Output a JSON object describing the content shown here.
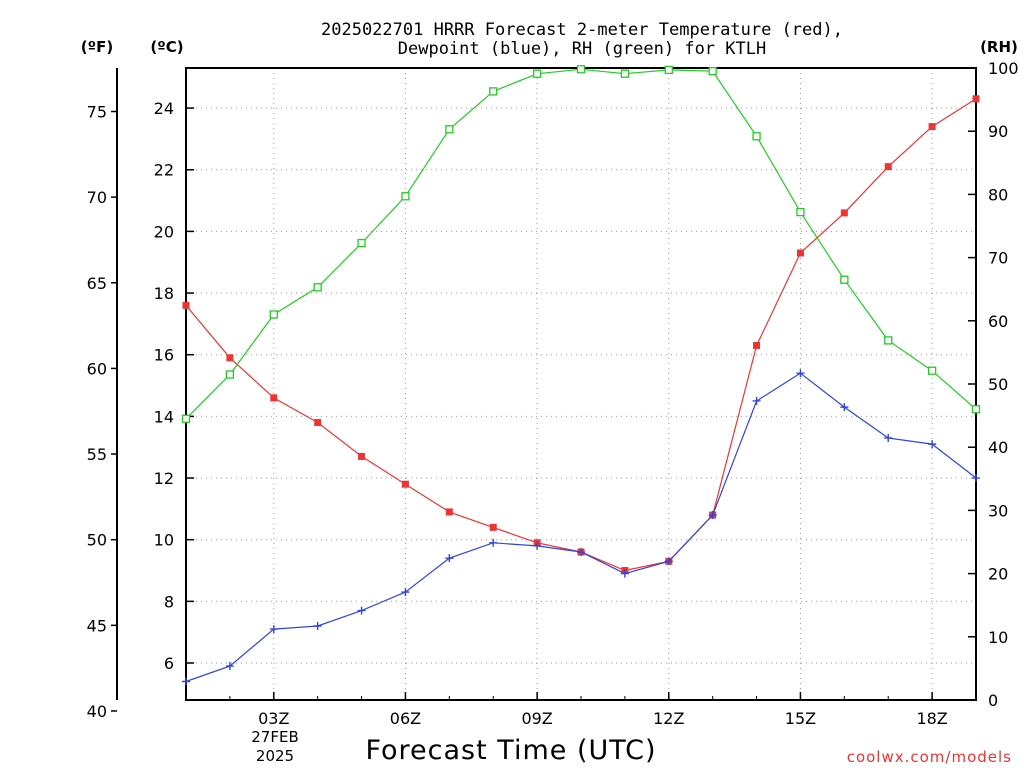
{
  "title_line1": "2025022701 HRRR Forecast 2-meter Temperature (red),",
  "title_line2": "Dewpoint (blue), RH (green) for KTLH",
  "unit_f": "(ºF)",
  "unit_c": "(ºC)",
  "unit_rh": "(RH)",
  "xlabel": "Forecast Time (UTC)",
  "date_label_line1": "27FEB",
  "date_label_line2": "2025",
  "watermark": "coolwx.com/models",
  "chart_data": {
    "type": "line",
    "x": [
      1,
      2,
      3,
      4,
      5,
      6,
      7,
      8,
      9,
      10,
      11,
      12,
      13,
      14,
      15,
      16,
      17,
      18,
      19
    ],
    "x_ticks": [
      {
        "x": 3,
        "label": "03Z"
      },
      {
        "x": 6,
        "label": "06Z"
      },
      {
        "x": 9,
        "label": "09Z"
      },
      {
        "x": 12,
        "label": "12Z"
      },
      {
        "x": 15,
        "label": "15Z"
      },
      {
        "x": 18,
        "label": "18Z"
      }
    ],
    "xlim": [
      1,
      19
    ],
    "ylim_c": [
      4.8,
      25.3
    ],
    "yticks_c": [
      6,
      8,
      10,
      12,
      14,
      16,
      18,
      20,
      22,
      24
    ],
    "yticks_f": [
      40,
      45,
      50,
      55,
      60,
      65,
      70,
      75
    ],
    "ylim_rh": [
      0,
      100
    ],
    "yticks_rh": [
      0,
      10,
      20,
      30,
      40,
      50,
      60,
      70,
      80,
      90,
      100
    ],
    "grid": true,
    "series": [
      {
        "name": "Temperature",
        "axis": "C",
        "color": "#ee3333",
        "marker": "filled-square",
        "values": [
          17.6,
          15.9,
          14.6,
          13.8,
          12.7,
          11.8,
          10.9,
          10.4,
          9.9,
          9.6,
          9.0,
          9.3,
          10.8,
          16.3,
          19.3,
          20.6,
          22.1,
          23.4,
          24.3
        ]
      },
      {
        "name": "Dewpoint",
        "axis": "C",
        "color": "#3344dd",
        "marker": "plus",
        "values": [
          5.4,
          5.9,
          7.1,
          7.2,
          7.7,
          8.3,
          9.4,
          9.9,
          9.8,
          9.6,
          8.9,
          9.3,
          10.8,
          14.5,
          15.4,
          14.3,
          13.3,
          13.1,
          12.0
        ]
      },
      {
        "name": "RH",
        "axis": "RH",
        "color": "#22cc22",
        "marker": "open-square",
        "values": [
          44.5,
          51.5,
          61,
          65.3,
          72.3,
          79.7,
          90.3,
          96.3,
          99.1,
          99.8,
          99.1,
          99.7,
          99.5,
          89.2,
          77.2,
          66.5,
          56.9,
          52.1,
          46.0
        ]
      }
    ]
  }
}
